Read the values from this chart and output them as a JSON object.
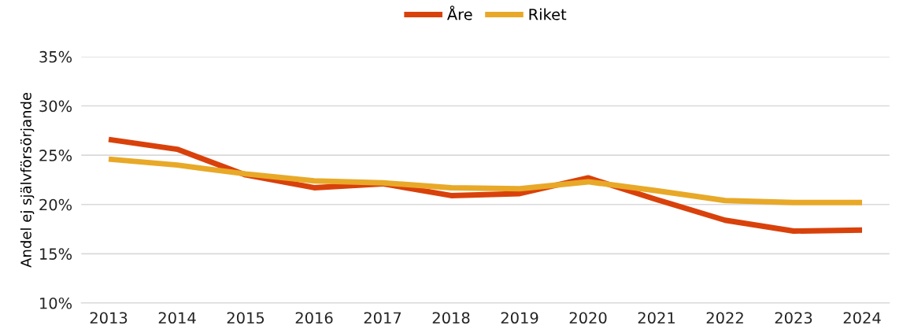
{
  "chart_data": {
    "type": "line",
    "ylabel": "Andel ej självförsörjande",
    "categories": [
      "2013",
      "2014",
      "2015",
      "2016",
      "2017",
      "2018",
      "2019",
      "2020",
      "2021",
      "2022",
      "2023",
      "2024"
    ],
    "series": [
      {
        "name": "Åre",
        "color": "#d9410b",
        "values": [
          26.6,
          25.6,
          23.0,
          21.7,
          22.1,
          20.9,
          21.1,
          22.7,
          20.5,
          18.4,
          17.3,
          17.4
        ]
      },
      {
        "name": "Riket",
        "color": "#e8a928",
        "values": [
          24.6,
          24.0,
          23.1,
          22.4,
          22.2,
          21.7,
          21.6,
          22.3,
          21.4,
          20.4,
          20.2,
          20.2
        ]
      }
    ],
    "ylim": [
      10,
      35
    ],
    "yticks": [
      {
        "value": 10,
        "label": "10%"
      },
      {
        "value": 15,
        "label": "15%"
      },
      {
        "value": 20,
        "label": "20%"
      },
      {
        "value": 25,
        "label": "25%"
      },
      {
        "value": 30,
        "label": "30%"
      },
      {
        "value": 35,
        "label": "35%"
      }
    ],
    "grid": "y",
    "legend": "top",
    "marker": "none",
    "line_style": "solid"
  }
}
